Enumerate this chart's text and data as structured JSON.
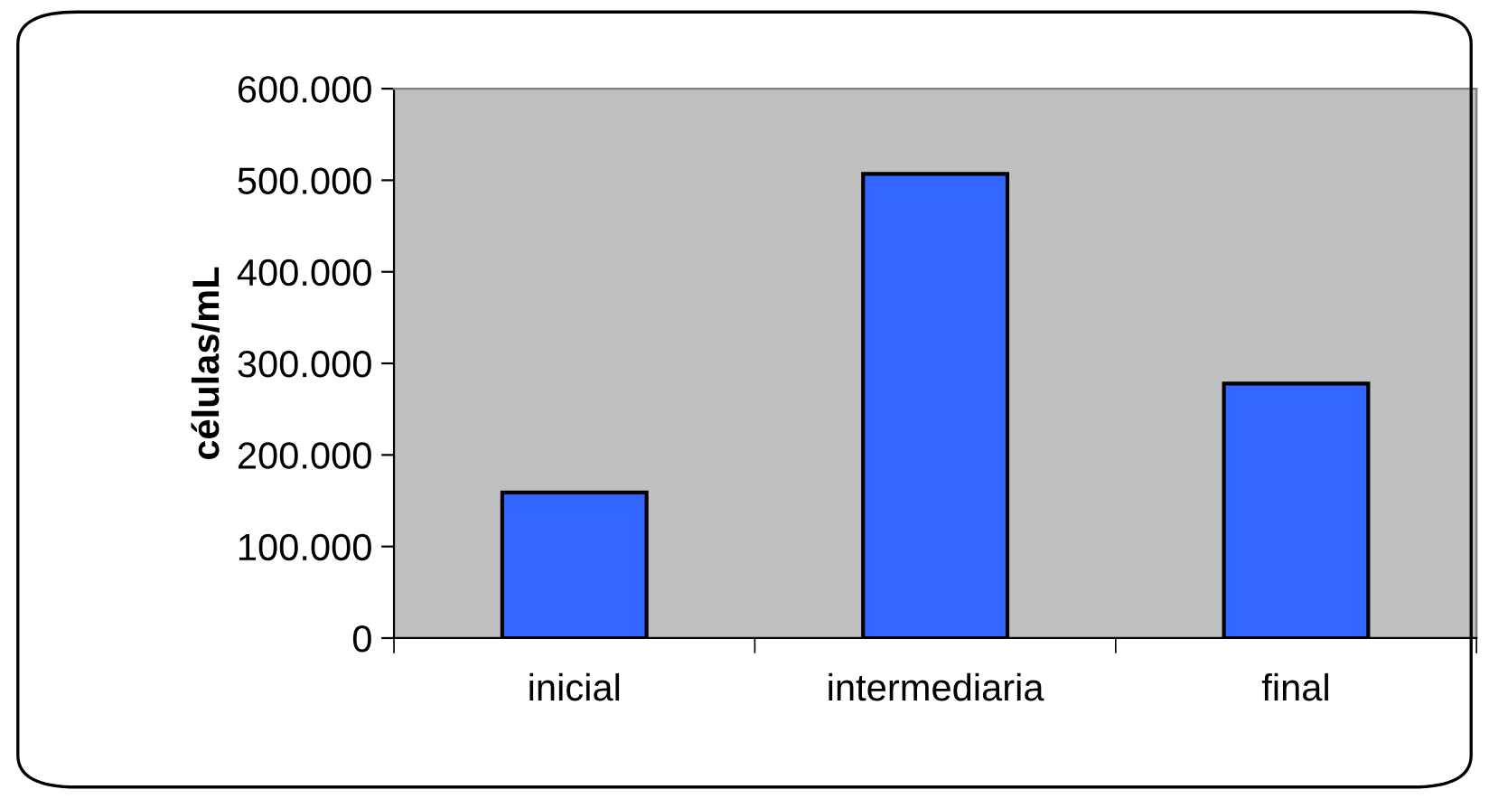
{
  "chart_data": {
    "type": "bar",
    "ylabel": "células/mL",
    "categories": [
      "inicial",
      "intermediaria",
      "final"
    ],
    "values": [
      159000,
      507000,
      278000
    ],
    "color": "#3366ff",
    "ylim": [
      0,
      600000
    ],
    "yticks": [
      0,
      {
        "value": 100000,
        "label": "100.000"
      },
      {
        "value": 200000,
        "label": "200.000"
      },
      {
        "value": 300000,
        "label": "300.000"
      },
      {
        "value": 400000,
        "label": "400.000"
      },
      {
        "value": 500000,
        "label": "500.000"
      },
      {
        "value": 600000,
        "label": "600.000"
      }
    ],
    "grid": false,
    "legend": false
  }
}
